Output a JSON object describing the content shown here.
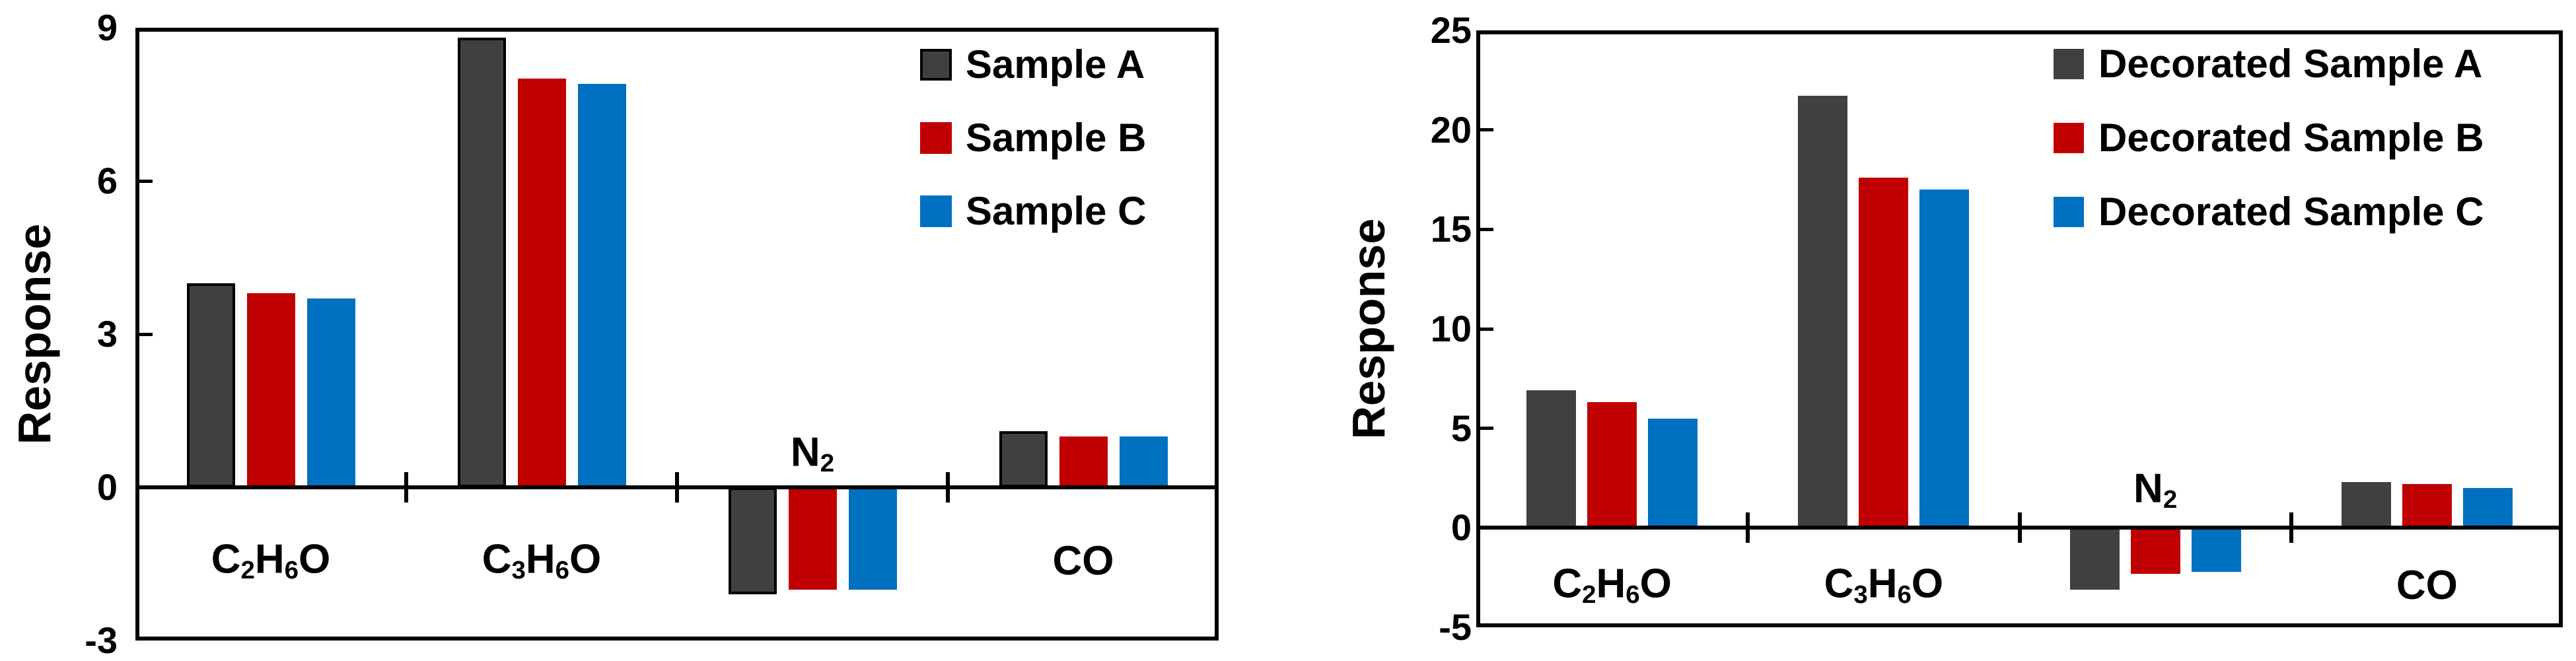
{
  "figure": {
    "background": "#ffffff",
    "axis_color": "#000000",
    "description": "Two grouped bar charts of sensor Response to four gases"
  },
  "chart_data": [
    {
      "type": "bar",
      "title": "",
      "xlabel": "",
      "ylabel": "Response",
      "ylim": [
        -3,
        9
      ],
      "yticks": [
        9,
        6,
        3,
        0,
        -3
      ],
      "grid": false,
      "legend_position": "top-right-inside",
      "categories": [
        "C_2H_6O",
        "C_3H_6O",
        "N_2",
        "CO"
      ],
      "series": [
        {
          "name": "Sample A",
          "color": "#404040",
          "border_color": "#000000",
          "values": [
            4.0,
            8.8,
            -2.1,
            1.1
          ]
        },
        {
          "name": "Sample B",
          "color": "#C00000",
          "values": [
            3.8,
            8.0,
            -2.0,
            1.0
          ]
        },
        {
          "name": "Sample C",
          "color": "#0070C0",
          "values": [
            3.7,
            7.9,
            -2.0,
            1.0
          ]
        }
      ]
    },
    {
      "type": "bar",
      "title": "",
      "xlabel": "",
      "ylabel": "Response",
      "ylim": [
        -5,
        25
      ],
      "yticks": [
        25,
        20,
        15,
        10,
        5,
        0,
        -5
      ],
      "grid": false,
      "legend_position": "top-right-inside",
      "categories": [
        "C_2H_6O",
        "C_3H_6O",
        "N_2",
        "CO"
      ],
      "series": [
        {
          "name": "Decorated Sample A",
          "color": "#404040",
          "values": [
            6.9,
            21.7,
            -3.1,
            2.3
          ]
        },
        {
          "name": "Decorated Sample B",
          "color": "#C00000",
          "values": [
            6.3,
            17.6,
            -2.3,
            2.2
          ]
        },
        {
          "name": "Decorated Sample C",
          "color": "#0070C0",
          "values": [
            5.5,
            17.0,
            -2.2,
            2.0
          ]
        }
      ]
    }
  ]
}
